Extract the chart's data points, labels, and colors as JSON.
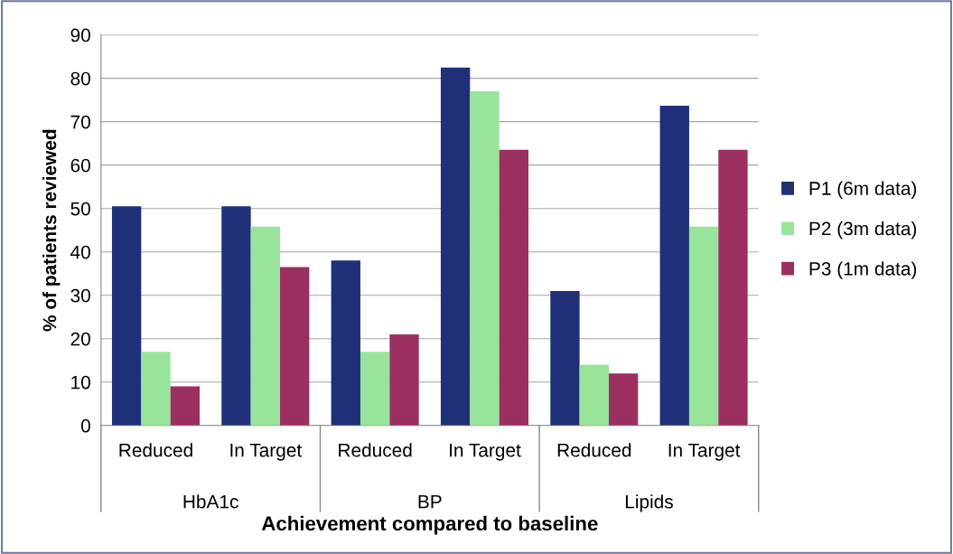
{
  "chart_data": {
    "type": "bar",
    "xlabel": "Achievement compared to baseline",
    "ylabel": "% of patients reviewed",
    "categories": [
      "Reduced",
      "In Target",
      "Reduced",
      "In Target",
      "Reduced",
      "In Target"
    ],
    "series": [
      {
        "name": "P1 (6m data)",
        "color": "#1f2f78",
        "values": [
          50.5,
          50.5,
          38,
          82.5,
          31,
          73.7
        ]
      },
      {
        "name": "P2 (3m data)",
        "color": "#98e49a",
        "values": [
          17,
          45.8,
          17,
          77,
          14,
          45.8
        ]
      },
      {
        "name": "P3 (1m data)",
        "color": "#9b2f60",
        "values": [
          9,
          36.5,
          21,
          63.5,
          12,
          63.5
        ]
      }
    ],
    "annotations": [
      "HbA1c",
      "BP",
      "Lipids"
    ],
    "ylim": [
      0,
      90
    ],
    "yticks": [
      0,
      10,
      20,
      30,
      40,
      50,
      60,
      70,
      80,
      90
    ],
    "grid": "y",
    "legend": "right"
  }
}
